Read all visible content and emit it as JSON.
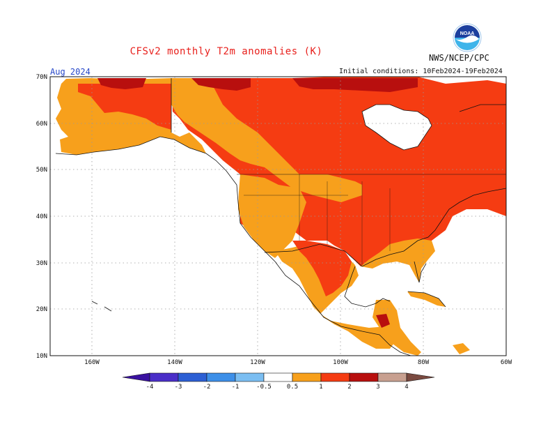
{
  "header": {
    "title": "CFSv2 monthly T2m anomalies (K)",
    "agency": "NWS/NCEP/CPC",
    "logo_text": "NOAA",
    "month": "Aug 2024",
    "initial_conditions": "Initial conditions: 10Feb2024-19Feb2024"
  },
  "map": {
    "lon_labels": [
      "160W",
      "140W",
      "120W",
      "100W",
      "80W",
      "60W"
    ],
    "lat_labels": [
      "70N",
      "60N",
      "50N",
      "40N",
      "30N",
      "20N",
      "10N"
    ]
  },
  "legend": {
    "labels": [
      "-4",
      "-3",
      "-2",
      "-1",
      "-0.5",
      "0.5",
      "1",
      "2",
      "3",
      "4"
    ],
    "colors": {
      "lt4": "#3a12a0",
      "m4_3": "#4a2ec8",
      "m3_2": "#2c5fd4",
      "m2_1": "#3d8fe8",
      "m1_05": "#7bbef2",
      "neutral": "#ffffff",
      "p05_1": "#f7a01c",
      "p1_2": "#f53c12",
      "p2_3": "#b80f0e",
      "p3_4": "#c8a090",
      "gt4": "#7a4a40"
    }
  },
  "colors": {
    "title": "#e8201c",
    "month": "#2546c8",
    "orange": "#f7a01c",
    "red": "#f53c12",
    "darkred": "#b80f0e"
  }
}
